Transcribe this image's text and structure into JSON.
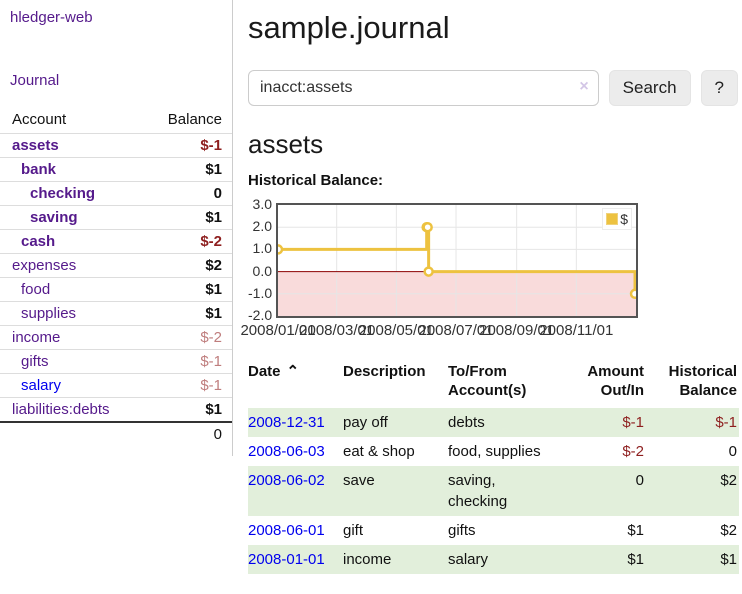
{
  "colors": {
    "link": "#0000ee",
    "visited": "#551a8b",
    "neg_strong": "#8e1f1f",
    "neg_muted": "#bf7d7d",
    "row_green": "#e2efdb",
    "button_bg": "#ececec",
    "border_light": "#dddddd",
    "divider": "#cccccc",
    "clear_x": "#d3c6e6",
    "chart_border": "#545454",
    "series": "#edc240"
  },
  "sidebar": {
    "app_link": "hledger-web",
    "nav_journal": "Journal",
    "accounts_table": {
      "headers": [
        "Account",
        "Balance"
      ],
      "accounts": [
        {
          "name": "assets",
          "level": 1,
          "match": true,
          "balance": "$-1",
          "balance_style": "neg",
          "visited": true
        },
        {
          "name": "bank",
          "level": 2,
          "match": true,
          "balance": "$1",
          "balance_style": "plain",
          "visited": true
        },
        {
          "name": "checking",
          "level": 3,
          "match": true,
          "balance": "0",
          "balance_style": "plain",
          "visited": true
        },
        {
          "name": "saving",
          "level": 3,
          "match": true,
          "balance": "$1",
          "balance_style": "plain",
          "visited": true
        },
        {
          "name": "cash",
          "level": 2,
          "match": true,
          "balance": "$-2",
          "balance_style": "neg",
          "visited": true
        },
        {
          "name": "expenses",
          "level": 1,
          "match": false,
          "balance": "$2",
          "balance_style": "plain",
          "visited": true
        },
        {
          "name": "food",
          "level": 2,
          "match": false,
          "balance": "$1",
          "balance_style": "plain",
          "visited": true
        },
        {
          "name": "supplies",
          "level": 2,
          "match": false,
          "balance": "$1",
          "balance_style": "plain",
          "visited": true
        },
        {
          "name": "income",
          "level": 1,
          "match": false,
          "balance": "$-2",
          "balance_style": "neg-muted",
          "visited": true
        },
        {
          "name": "gifts",
          "level": 2,
          "match": false,
          "balance": "$-1",
          "balance_style": "neg-muted",
          "visited": true
        },
        {
          "name": "salary",
          "level": 2,
          "match": false,
          "balance": "$-1",
          "balance_style": "neg-muted",
          "visited": false
        },
        {
          "name": "liabilities:debts",
          "level": 1,
          "match": false,
          "balance": "$1",
          "balance_style": "plain",
          "visited": true
        }
      ],
      "total": "0"
    }
  },
  "main": {
    "title": "sample.journal",
    "search": {
      "value": "inacct:assets",
      "clear_icon": "×",
      "button": "Search",
      "help_button": "?"
    },
    "account_heading": "assets",
    "chart_label": "Historical Balance:",
    "register": {
      "headers": [
        "Date",
        "Description",
        "To/From Account(s)",
        "Amount Out/In",
        "Historical Balance"
      ],
      "sort_icon": "⌃",
      "rows": [
        {
          "date": "2008-12-31",
          "description": "pay off",
          "accounts": "debts",
          "amount": "$-1",
          "amount_negative": true,
          "balance": "$-1",
          "balance_negative": true
        },
        {
          "date": "2008-06-03",
          "description": "eat & shop",
          "accounts": "food, supplies",
          "amount": "$-2",
          "amount_negative": true,
          "balance": "0",
          "balance_negative": false
        },
        {
          "date": "2008-06-02",
          "description": "save",
          "accounts": "saving, checking",
          "amount": "0",
          "amount_negative": false,
          "balance": "$2",
          "balance_negative": false
        },
        {
          "date": "2008-06-01",
          "description": "gift",
          "accounts": "gifts",
          "amount": "$1",
          "amount_negative": false,
          "balance": "$2",
          "balance_negative": false
        },
        {
          "date": "2008-01-01",
          "description": "income",
          "accounts": "salary",
          "amount": "$1",
          "amount_negative": false,
          "balance": "$1",
          "balance_negative": false
        }
      ]
    }
  },
  "chart_data": {
    "type": "line",
    "title": "Historical Balance",
    "steps": true,
    "series": [
      {
        "name": "$",
        "color": "#edc240",
        "points": [
          [
            "2008-01-01",
            1
          ],
          [
            "2008-06-01",
            2
          ],
          [
            "2008-06-02",
            2
          ],
          [
            "2008-06-03",
            0
          ],
          [
            "2008-12-31",
            -1
          ]
        ]
      }
    ],
    "x_ticks": [
      "2008/01/01",
      "2008/03/01",
      "2008/05/01",
      "2008/07/01",
      "2008/09/01",
      "2008/11/01"
    ],
    "y_ticks": [
      "3.0",
      "2.0",
      "1.0",
      "0.0",
      "-1.0",
      "-2.0"
    ],
    "xlim": [
      "2008-01-01",
      "2009-01-01"
    ],
    "ylim": [
      -2,
      3
    ],
    "grid": true,
    "grid_color": "#e6e6e6",
    "negative_region_fill": "#f9dbdb",
    "zero_line_color": "#8b0000",
    "legend": {
      "label": "$",
      "position": "top-right"
    }
  }
}
